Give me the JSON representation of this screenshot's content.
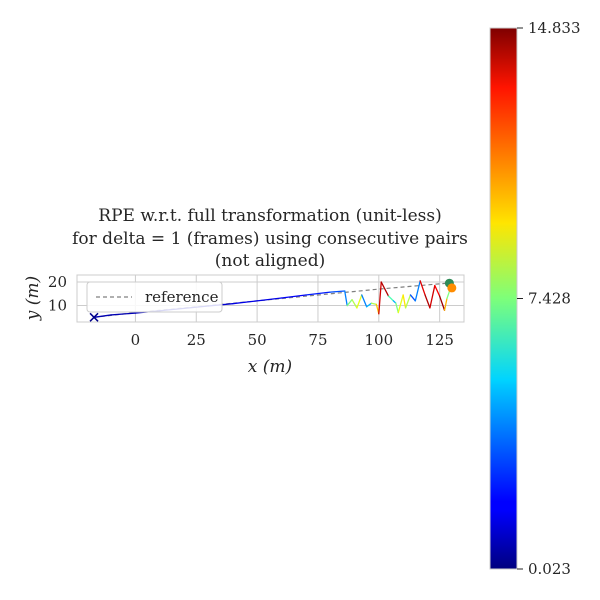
{
  "chart_data": {
    "type": "line",
    "title_lines": [
      "RPE w.r.t. full transformation (unit-less)",
      "for delta = 1 (frames) using consecutive pairs",
      "(not aligned)"
    ],
    "xlabel": "x (m)",
    "ylabel": "y (m)",
    "xlim": [
      -24,
      135
    ],
    "ylim": [
      3,
      23
    ],
    "xticks": [
      0,
      25,
      50,
      75,
      100,
      125
    ],
    "yticks": [
      10,
      20
    ],
    "grid": true,
    "legend": {
      "location": "upper-left",
      "entries": [
        "reference"
      ]
    },
    "reference": {
      "name": "reference",
      "style": "dashed",
      "color": "#808080",
      "points": [
        [
          -17,
          5
        ],
        [
          0,
          7
        ],
        [
          25,
          9.5
        ],
        [
          50,
          12
        ],
        [
          75,
          14.5
        ],
        [
          100,
          17
        ],
        [
          128,
          19.5
        ]
      ]
    },
    "trajectory": {
      "points": [
        [
          -17,
          5,
          0.05
        ],
        [
          -10,
          6,
          0.05
        ],
        [
          0,
          6.8,
          0.05
        ],
        [
          10,
          7.8,
          0.06
        ],
        [
          20,
          8.8,
          0.06
        ],
        [
          30,
          9.8,
          0.07
        ],
        [
          40,
          10.8,
          0.08
        ],
        [
          45,
          11.4,
          0.1
        ],
        [
          50,
          12,
          0.1
        ],
        [
          60,
          13.2,
          0.1
        ],
        [
          70,
          14.5,
          0.12
        ],
        [
          80,
          15.7,
          0.15
        ],
        [
          86,
          16.2,
          0.2
        ],
        [
          87,
          10,
          0.25
        ],
        [
          89,
          12.5,
          0.5
        ],
        [
          91,
          9,
          0.55
        ],
        [
          93,
          14.5,
          0.6
        ],
        [
          95,
          9.5,
          0.25
        ],
        [
          97,
          11,
          0.3
        ],
        [
          99,
          10.5,
          0.55
        ],
        [
          100,
          6.5,
          0.68
        ],
        [
          101,
          20,
          0.92
        ],
        [
          104,
          14,
          0.95
        ],
        [
          106,
          12,
          0.45
        ],
        [
          107,
          11,
          0.3
        ],
        [
          108,
          7,
          0.5
        ],
        [
          110,
          14.5,
          0.6
        ],
        [
          111,
          9,
          0.65
        ],
        [
          113,
          14.5,
          0.55
        ],
        [
          115,
          12,
          0.2
        ],
        [
          117,
          20.5,
          0.25
        ],
        [
          119,
          14.5,
          0.9
        ],
        [
          121,
          9,
          0.95
        ],
        [
          123,
          18.5,
          0.92
        ],
        [
          125,
          14,
          0.88
        ],
        [
          127,
          8,
          0.97
        ],
        [
          128,
          13,
          0.7
        ],
        [
          129,
          16,
          0.5
        ]
      ],
      "endpoints": [
        {
          "x": -17,
          "y": 5,
          "marker": "x",
          "color": "#00008b"
        },
        {
          "x": 129,
          "y": 19.5,
          "marker": "o",
          "color": "#2e8b57"
        },
        {
          "x": 130,
          "y": 17.5,
          "marker": "o",
          "color": "#ff8c00"
        }
      ]
    },
    "colorbar": {
      "colormap": "jet",
      "min": 0.023,
      "max": 14.833,
      "tick_labels": [
        "14.833",
        "7.428",
        "0.023"
      ]
    }
  }
}
